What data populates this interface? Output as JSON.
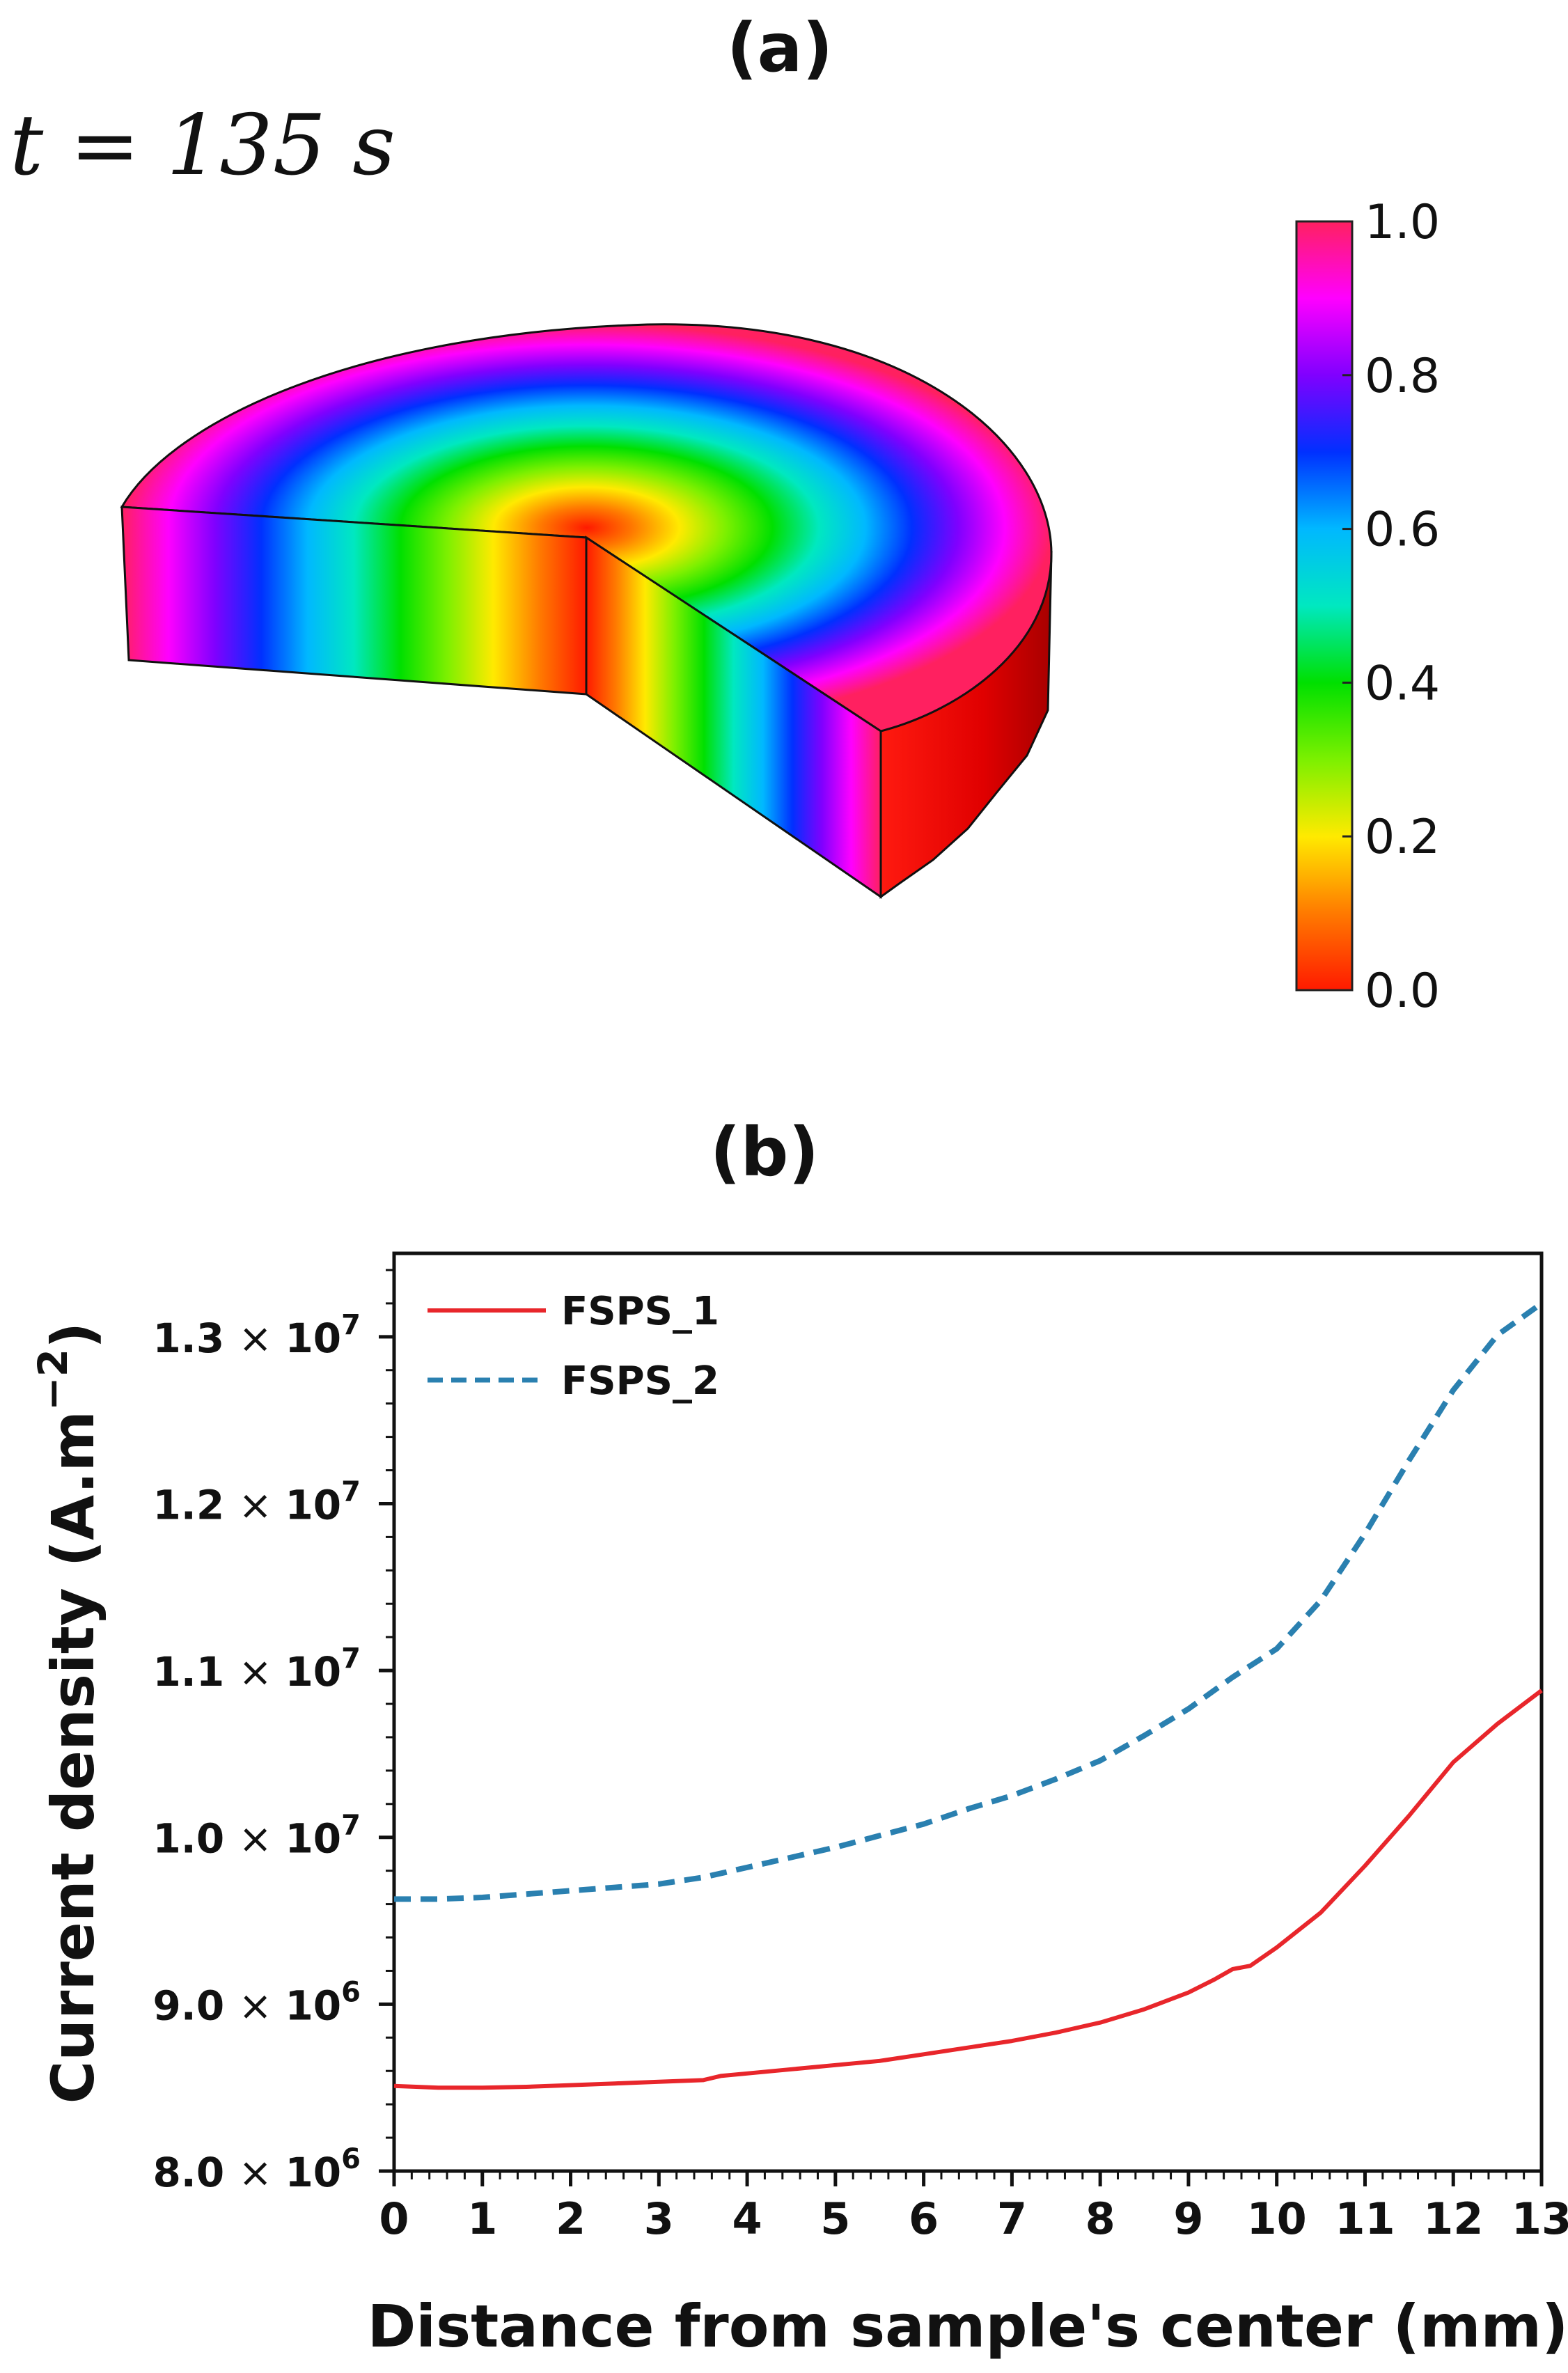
{
  "panel_a": {
    "label": "(a)",
    "time_text": "t = 135 s",
    "colorbar": {
      "ticks": [
        "0.0",
        "0.2",
        "0.4",
        "0.6",
        "0.8",
        "1.0"
      ],
      "tick_values": [
        0.0,
        0.2,
        0.4,
        0.6,
        0.8,
        1.0
      ],
      "range": [
        0.0,
        1.0
      ],
      "colors": [
        "#ff1a00",
        "#ff7a00",
        "#ffea00",
        "#7cf000",
        "#00e000",
        "#00e8c0",
        "#00b8ff",
        "#0030ff",
        "#8000ff",
        "#ff00ff",
        "#ff2060"
      ]
    }
  },
  "panel_b": {
    "label": "(b)"
  },
  "chart_data": {
    "type": "line",
    "title": "",
    "xlabel": "Distance from sample's center (mm)",
    "ylabel": "Current density (A.m−2)",
    "ylabel_main": "Current density",
    "ylabel_unit_pre": "(A.m",
    "ylabel_unit_exp": "−2",
    "ylabel_unit_post": ")",
    "xlim": [
      0,
      13
    ],
    "ylim": [
      8000000,
      13500000
    ],
    "xticks": [
      0,
      1,
      2,
      3,
      4,
      5,
      6,
      7,
      8,
      9,
      10,
      11,
      12,
      13
    ],
    "xtick_labels": [
      "0",
      "1",
      "2",
      "3",
      "4",
      "5",
      "6",
      "7",
      "8",
      "9",
      "10",
      "11",
      "12",
      "13"
    ],
    "yticks": [
      8000000,
      9000000,
      10000000,
      11000000,
      12000000,
      13000000
    ],
    "ytick_labels": [
      {
        "mantissa": "8.0",
        "times": "×",
        "base": "10",
        "exp": "6"
      },
      {
        "mantissa": "9.0",
        "times": "×",
        "base": "10",
        "exp": "6"
      },
      {
        "mantissa": "1.0",
        "times": "×",
        "base": "10",
        "exp": "7"
      },
      {
        "mantissa": "1.1",
        "times": "×",
        "base": "10",
        "exp": "7"
      },
      {
        "mantissa": "1.2",
        "times": "×",
        "base": "10",
        "exp": "7"
      },
      {
        "mantissa": "1.3",
        "times": "×",
        "base": "10",
        "exp": "7"
      }
    ],
    "legend_position": "top-left",
    "series": [
      {
        "name": "FSPS_1",
        "color": "#e8262b",
        "style": "solid",
        "x": [
          0,
          0.5,
          1,
          1.5,
          2,
          2.5,
          3,
          3.5,
          3.7,
          4,
          4.5,
          5,
          5.5,
          6,
          6.5,
          7,
          7.5,
          8,
          8.5,
          9,
          9.3,
          9.5,
          9.7,
          10,
          10.5,
          11,
          11.5,
          12,
          12.5,
          13
        ],
        "values": [
          8510000,
          8500000,
          8500000,
          8505000,
          8515000,
          8525000,
          8535000,
          8545000,
          8570000,
          8585000,
          8610000,
          8635000,
          8660000,
          8700000,
          8740000,
          8780000,
          8830000,
          8890000,
          8970000,
          9070000,
          9150000,
          9210000,
          9230000,
          9340000,
          9550000,
          9830000,
          10130000,
          10450000,
          10680000,
          10880000
        ]
      },
      {
        "name": "FSPS_2",
        "color": "#2a80b0",
        "style": "dashed",
        "x": [
          0,
          0.5,
          1,
          1.5,
          2,
          2.5,
          3,
          3.5,
          4,
          4.5,
          5,
          5.5,
          6,
          6.5,
          7,
          7.5,
          8,
          8.5,
          9,
          9.5,
          10,
          10.5,
          11,
          11.5,
          12,
          12.5,
          13
        ],
        "values": [
          9630000,
          9630000,
          9640000,
          9660000,
          9680000,
          9700000,
          9720000,
          9760000,
          9820000,
          9880000,
          9940000,
          10010000,
          10080000,
          10170000,
          10250000,
          10350000,
          10460000,
          10610000,
          10770000,
          10960000,
          11130000,
          11420000,
          11820000,
          12260000,
          12680000,
          13010000,
          13200000
        ]
      }
    ]
  }
}
